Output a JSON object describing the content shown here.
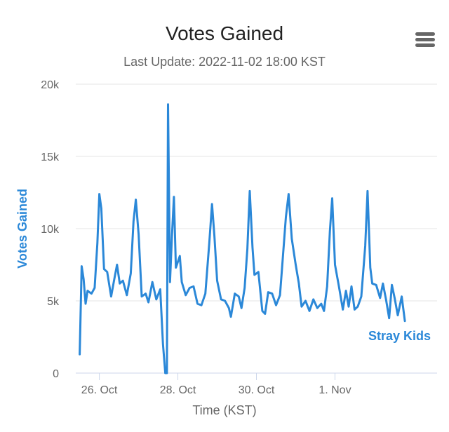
{
  "chart_data": {
    "type": "line",
    "title": "Votes Gained",
    "subtitle": "Last Update: 2022-11-02 18:00 KST",
    "xlabel": "Time (KST)",
    "ylabel": "Votes Gained",
    "ylim": [
      0,
      20000
    ],
    "xlim": [
      -0.6,
      8.6
    ],
    "y_ticks": [
      {
        "value": 0,
        "label": "0"
      },
      {
        "value": 5000,
        "label": "5k"
      },
      {
        "value": 10000,
        "label": "10k"
      },
      {
        "value": 15000,
        "label": "15k"
      },
      {
        "value": 20000,
        "label": "20k"
      }
    ],
    "x_ticks": [
      {
        "value": 0,
        "label": "26. Oct"
      },
      {
        "value": 2,
        "label": "28. Oct"
      },
      {
        "value": 4,
        "label": "30. Oct"
      },
      {
        "value": 6,
        "label": "1. Nov"
      }
    ],
    "series": [
      {
        "name": "Stray Kids",
        "color": "#2b88d8",
        "points": [
          [
            -0.5,
            1300
          ],
          [
            -0.45,
            7400
          ],
          [
            -0.4,
            6500
          ],
          [
            -0.35,
            4800
          ],
          [
            -0.3,
            5700
          ],
          [
            -0.2,
            5500
          ],
          [
            -0.12,
            5900
          ],
          [
            -0.05,
            9000
          ],
          [
            0,
            12400
          ],
          [
            0.05,
            11400
          ],
          [
            0.12,
            7200
          ],
          [
            0.2,
            7000
          ],
          [
            0.3,
            5300
          ],
          [
            0.38,
            6500
          ],
          [
            0.45,
            7500
          ],
          [
            0.52,
            6200
          ],
          [
            0.6,
            6400
          ],
          [
            0.7,
            5400
          ],
          [
            0.8,
            6900
          ],
          [
            0.87,
            10500
          ],
          [
            0.93,
            12000
          ],
          [
            1.0,
            9600
          ],
          [
            1.08,
            5300
          ],
          [
            1.18,
            5500
          ],
          [
            1.25,
            4900
          ],
          [
            1.35,
            6300
          ],
          [
            1.45,
            5100
          ],
          [
            1.55,
            5800
          ],
          [
            1.62,
            2000
          ],
          [
            1.68,
            0
          ],
          [
            1.72,
            0
          ],
          [
            1.75,
            18600
          ],
          [
            1.8,
            6300
          ],
          [
            1.85,
            9500
          ],
          [
            1.9,
            12200
          ],
          [
            1.95,
            7300
          ],
          [
            2.05,
            8100
          ],
          [
            2.1,
            6300
          ],
          [
            2.2,
            5400
          ],
          [
            2.3,
            5900
          ],
          [
            2.4,
            6000
          ],
          [
            2.5,
            4800
          ],
          [
            2.6,
            4700
          ],
          [
            2.7,
            5500
          ],
          [
            2.8,
            9000
          ],
          [
            2.87,
            11700
          ],
          [
            2.93,
            9500
          ],
          [
            3.0,
            6400
          ],
          [
            3.1,
            5100
          ],
          [
            3.2,
            5000
          ],
          [
            3.3,
            4500
          ],
          [
            3.35,
            3900
          ],
          [
            3.45,
            5500
          ],
          [
            3.55,
            5300
          ],
          [
            3.62,
            4500
          ],
          [
            3.7,
            5900
          ],
          [
            3.77,
            8600
          ],
          [
            3.83,
            12600
          ],
          [
            3.9,
            8700
          ],
          [
            3.95,
            6800
          ],
          [
            4.05,
            7000
          ],
          [
            4.15,
            4300
          ],
          [
            4.22,
            4100
          ],
          [
            4.3,
            5600
          ],
          [
            4.4,
            5500
          ],
          [
            4.5,
            4700
          ],
          [
            4.6,
            5400
          ],
          [
            4.67,
            7900
          ],
          [
            4.75,
            10800
          ],
          [
            4.82,
            12400
          ],
          [
            4.9,
            9300
          ],
          [
            5.0,
            7500
          ],
          [
            5.08,
            6200
          ],
          [
            5.15,
            4600
          ],
          [
            5.25,
            5000
          ],
          [
            5.35,
            4300
          ],
          [
            5.45,
            5100
          ],
          [
            5.55,
            4500
          ],
          [
            5.65,
            4800
          ],
          [
            5.72,
            4300
          ],
          [
            5.8,
            6000
          ],
          [
            5.87,
            9800
          ],
          [
            5.93,
            12100
          ],
          [
            6.0,
            7500
          ],
          [
            6.1,
            6000
          ],
          [
            6.2,
            4400
          ],
          [
            6.28,
            5700
          ],
          [
            6.35,
            4600
          ],
          [
            6.42,
            6000
          ],
          [
            6.5,
            4400
          ],
          [
            6.58,
            4600
          ],
          [
            6.67,
            5300
          ],
          [
            6.77,
            8800
          ],
          [
            6.83,
            12600
          ],
          [
            6.9,
            7300
          ],
          [
            6.95,
            6200
          ],
          [
            7.05,
            6100
          ],
          [
            7.15,
            5200
          ],
          [
            7.22,
            6200
          ],
          [
            7.3,
            5100
          ],
          [
            7.38,
            3800
          ],
          [
            7.45,
            6100
          ],
          [
            7.52,
            5200
          ],
          [
            7.6,
            4000
          ],
          [
            7.7,
            5300
          ],
          [
            7.78,
            3600
          ]
        ]
      }
    ],
    "legend": {
      "label": "Stray Kids",
      "position": "bottom-right"
    },
    "grid": true
  }
}
